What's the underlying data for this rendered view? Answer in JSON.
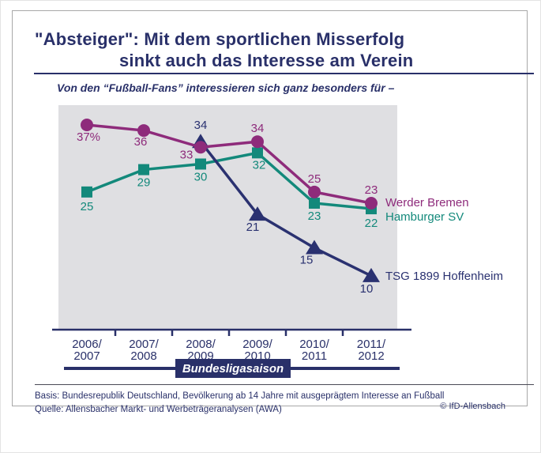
{
  "title": {
    "line1": "\"Absteiger\": Mit dem sportlichen Misserfolg",
    "line2": "sinkt auch das Interesse am Verein"
  },
  "subtitle": "Von den “Fußball-Fans” interessieren sich ganz besonders für –",
  "chart_data": {
    "type": "line",
    "categories": [
      "2006/2007",
      "2007/2008",
      "2008/2009",
      "2009/2010",
      "2010/2011",
      "2011/2012"
    ],
    "xlabel": "Bundesligasaison",
    "unit": "%",
    "ylim": [
      0,
      40
    ],
    "grid": false,
    "legend_position": "right-of-last-point",
    "series": [
      {
        "name": "Hamburger SV",
        "color": "#13897B",
        "marker": "square",
        "values": [
          25,
          29,
          30,
          32,
          23,
          22
        ],
        "labels": [
          "25",
          "29",
          "30",
          "32",
          "23",
          "22"
        ]
      },
      {
        "name": "TSG 1899 Hoffenheim",
        "color": "#2A3170",
        "marker": "triangle",
        "values": [
          null,
          null,
          34,
          21,
          15,
          10
        ],
        "labels": [
          null,
          null,
          "34",
          "21",
          "15",
          "10"
        ]
      },
      {
        "name": "Werder Bremen",
        "color": "#8E2B7B",
        "marker": "circle",
        "values": [
          37,
          36,
          33,
          34,
          25,
          23
        ],
        "labels": [
          "37%",
          "36",
          "33",
          "34",
          "25",
          "23"
        ]
      }
    ]
  },
  "footer": {
    "basis": "Basis: Bundesrepublik Deutschland, Bevölkerung ab 14 Jahre mit ausgeprägtem Interesse an Fußball",
    "quelle": "Quelle: Allensbacher Markt- und Werbeträgeranalysen (AWA)",
    "copyright": "© IfD-Allensbach"
  },
  "colors": {
    "navy": "#293069",
    "plot_background": "#DFDFE2",
    "frame_border": "#a8a8a8"
  }
}
